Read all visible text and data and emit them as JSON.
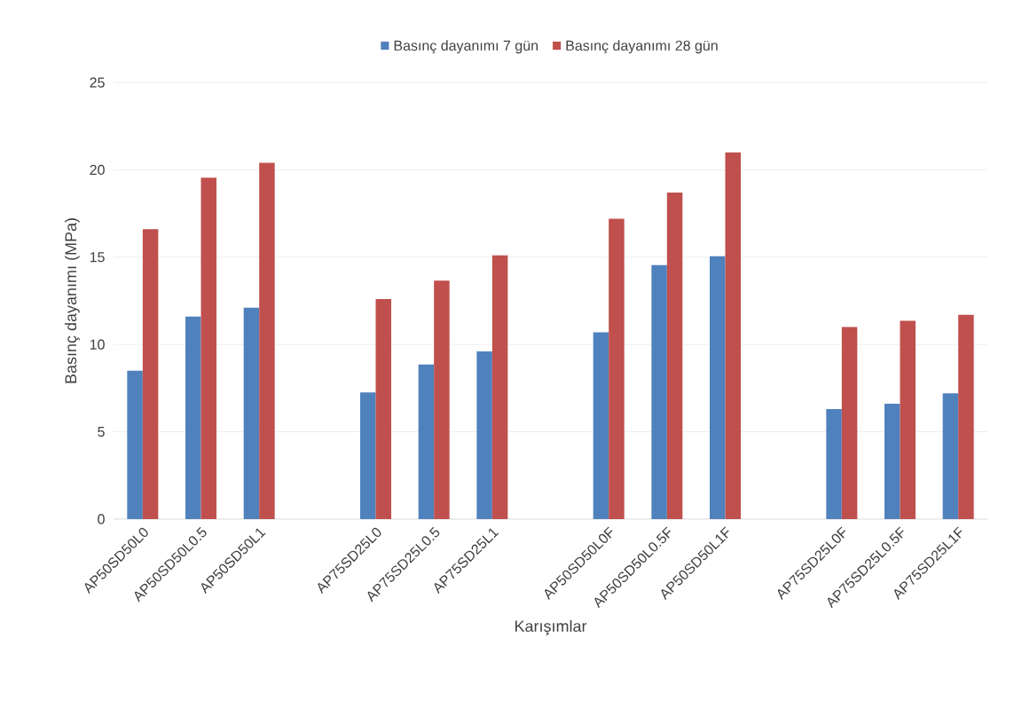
{
  "chart_data": {
    "type": "bar",
    "xlabel": "Karışımlar",
    "ylabel": "Basınç dayanımı (MPa)",
    "categories": [
      "AP50SD50L0",
      "AP50SD50L0.5",
      "AP50SD50L1",
      null,
      "AP75SD25L0",
      "AP75SD25L0.5",
      "AP75SD25L1",
      null,
      "AP50SD50L0F",
      "AP50SD50L0.5F",
      "AP50SD50L1F",
      null,
      "AP75SD25L0F",
      "AP75SD25L0.5F",
      "AP75SD25L1F"
    ],
    "series": [
      {
        "name": "Basınç dayanımı 7 gün",
        "color": "#4f81bd",
        "values": [
          8.5,
          11.6,
          12.1,
          null,
          7.25,
          8.85,
          9.6,
          null,
          10.7,
          14.55,
          15.05,
          null,
          6.3,
          6.6,
          7.2
        ]
      },
      {
        "name": "Basınç dayanımı 28 gün",
        "color": "#c0504d",
        "values": [
          16.6,
          19.55,
          20.4,
          null,
          12.6,
          13.65,
          15.1,
          null,
          17.2,
          18.7,
          21,
          null,
          11.0,
          11.35,
          11.7
        ]
      }
    ],
    "ylim": [
      0,
      25
    ],
    "yticks": [
      0,
      5,
      10,
      15,
      20,
      25
    ],
    "grid": "y",
    "legend": "top"
  }
}
